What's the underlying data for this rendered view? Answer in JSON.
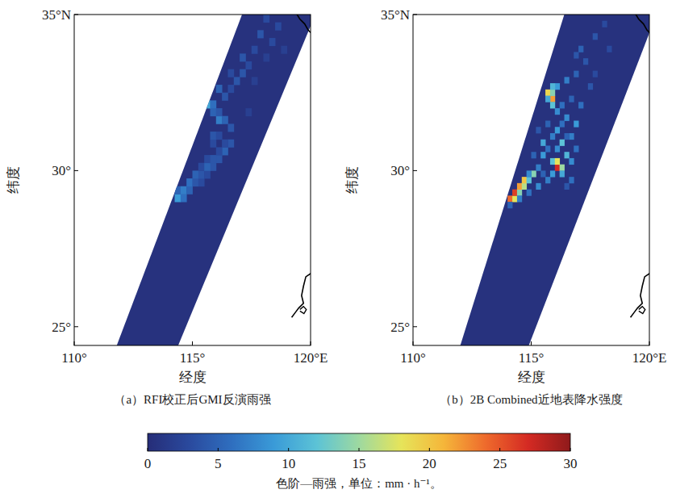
{
  "chart_data": [
    {
      "type": "heatmap",
      "title": "（a）RFI校正后GMI反演雨强",
      "xlabel": "经度",
      "ylabel": "纬度",
      "xlim": [
        110,
        120
      ],
      "ylim": [
        24.4,
        35
      ],
      "xticks": [
        {
          "value": 110,
          "label": "110°"
        },
        {
          "value": 115,
          "label": "115°"
        },
        {
          "value": 120,
          "label": "120°E"
        }
      ],
      "yticks": [
        {
          "value": 25,
          "label": "25°"
        },
        {
          "value": 30,
          "label": "30°"
        },
        {
          "value": 35,
          "label": "35°N"
        }
      ],
      "swath": [
        [
          111.8,
          24.4
        ],
        [
          114.4,
          24.4
        ],
        [
          120.2,
          35
        ],
        [
          117.1,
          35
        ]
      ],
      "background": 0.5,
      "cell_size": 0.25,
      "cells": [
        [
          114.375,
          29.125,
          9
        ],
        [
          114.625,
          29.125,
          6
        ],
        [
          114.375,
          29.375,
          5
        ],
        [
          114.625,
          29.375,
          7
        ],
        [
          114.875,
          29.375,
          5
        ],
        [
          114.875,
          29.625,
          6
        ],
        [
          115.125,
          29.625,
          4
        ],
        [
          115.375,
          29.625,
          3
        ],
        [
          115.125,
          29.875,
          5
        ],
        [
          115.375,
          29.875,
          4
        ],
        [
          115.625,
          29.875,
          3
        ],
        [
          115.875,
          30.125,
          4
        ],
        [
          115.375,
          30.125,
          3
        ],
        [
          115.625,
          30.125,
          5
        ],
        [
          116.125,
          30.375,
          4
        ],
        [
          115.625,
          30.375,
          3
        ],
        [
          115.875,
          30.375,
          4
        ],
        [
          116.375,
          30.625,
          5
        ],
        [
          116.125,
          30.625,
          3
        ],
        [
          116.625,
          30.875,
          4
        ],
        [
          115.875,
          30.875,
          3
        ],
        [
          116.375,
          30.875,
          3
        ],
        [
          115.875,
          31.125,
          4
        ],
        [
          116.125,
          31.125,
          3
        ],
        [
          116.625,
          31.375,
          4
        ],
        [
          116.125,
          31.625,
          7
        ],
        [
          116.375,
          31.625,
          5
        ],
        [
          115.875,
          31.875,
          5
        ],
        [
          116.125,
          31.875,
          4
        ],
        [
          115.625,
          32.125,
          10
        ],
        [
          115.875,
          32.125,
          6
        ],
        [
          116.375,
          32.375,
          4
        ],
        [
          116.125,
          32.625,
          5
        ],
        [
          116.625,
          32.625,
          3
        ],
        [
          116.875,
          32.875,
          4
        ],
        [
          117.125,
          33.125,
          4
        ],
        [
          116.625,
          33.125,
          3
        ],
        [
          117.375,
          33.375,
          3
        ],
        [
          117.125,
          33.625,
          4
        ],
        [
          117.625,
          33.875,
          3
        ],
        [
          118.125,
          33.625,
          2
        ],
        [
          118.375,
          34.125,
          3
        ],
        [
          117.875,
          34.375,
          4
        ],
        [
          118.625,
          34.625,
          3
        ],
        [
          118.875,
          33.875,
          2
        ],
        [
          117.625,
          32.875,
          2
        ],
        [
          117.375,
          31.875,
          2
        ],
        [
          118.125,
          34.875,
          3
        ]
      ]
    },
    {
      "type": "heatmap",
      "title": "（b）2B Combined近地表降水强度",
      "xlabel": "经度",
      "ylabel": "纬度",
      "xlim": [
        110,
        120
      ],
      "ylim": [
        24.4,
        35
      ],
      "xticks": [
        {
          "value": 110,
          "label": "110°"
        },
        {
          "value": 115,
          "label": "115°"
        },
        {
          "value": 120,
          "label": "120°E"
        }
      ],
      "yticks": [
        {
          "value": 25,
          "label": "25°"
        },
        {
          "value": 30,
          "label": "30°"
        },
        {
          "value": 35,
          "label": "35°N"
        }
      ],
      "swath": [
        [
          112,
          24.4
        ],
        [
          114.9,
          24.4
        ],
        [
          120.3,
          35
        ],
        [
          116.4,
          35
        ]
      ],
      "background": 0.5,
      "cell_size": 0.2,
      "cells": [
        [
          114.1,
          29.1,
          24
        ],
        [
          114.3,
          29.1,
          18
        ],
        [
          114.3,
          29.3,
          26
        ],
        [
          114.5,
          29.3,
          14
        ],
        [
          114.5,
          29.5,
          22
        ],
        [
          114.7,
          29.5,
          16
        ],
        [
          114.7,
          29.7,
          20
        ],
        [
          114.9,
          29.7,
          12
        ],
        [
          115.1,
          29.9,
          14
        ],
        [
          114.9,
          29.9,
          8
        ],
        [
          116.1,
          30.1,
          27
        ],
        [
          116.3,
          30.1,
          15
        ],
        [
          115.9,
          30.3,
          12
        ],
        [
          116.1,
          30.3,
          18
        ],
        [
          116.3,
          29.9,
          10
        ],
        [
          115.9,
          29.9,
          9
        ],
        [
          116.5,
          30.5,
          11
        ],
        [
          116.7,
          30.3,
          8
        ],
        [
          115.9,
          32.3,
          22
        ],
        [
          115.7,
          32.5,
          19
        ],
        [
          115.9,
          32.5,
          14
        ],
        [
          115.7,
          32.3,
          10
        ],
        [
          115.9,
          32.1,
          12
        ],
        [
          116.1,
          32.7,
          9
        ],
        [
          115.9,
          32.7,
          11
        ],
        [
          116.1,
          31.9,
          8
        ],
        [
          115.3,
          30.1,
          7
        ],
        [
          115.5,
          30.5,
          9
        ],
        [
          115.7,
          30.7,
          6
        ],
        [
          115.5,
          30.9,
          10
        ],
        [
          115.9,
          31.1,
          7
        ],
        [
          116.1,
          31.3,
          9
        ],
        [
          116.3,
          31.5,
          6
        ],
        [
          116.5,
          31.7,
          8
        ],
        [
          115.7,
          31.5,
          5
        ],
        [
          116.7,
          31.1,
          7
        ],
        [
          116.9,
          30.7,
          6
        ],
        [
          116.5,
          31.1,
          5
        ],
        [
          116.9,
          31.5,
          9
        ],
        [
          117.1,
          32.1,
          6
        ],
        [
          116.7,
          32.3,
          5
        ],
        [
          116.5,
          32.9,
          7
        ],
        [
          116.9,
          33.1,
          5
        ],
        [
          117.3,
          33.5,
          4
        ],
        [
          117.1,
          33.9,
          5
        ],
        [
          117.7,
          34.3,
          4
        ],
        [
          118.1,
          34.7,
          3
        ],
        [
          116.9,
          33.7,
          4
        ],
        [
          117.5,
          32.7,
          4
        ],
        [
          114.9,
          29.3,
          6
        ],
        [
          115.3,
          29.5,
          8
        ],
        [
          115.7,
          29.7,
          7
        ],
        [
          115.5,
          29.9,
          5
        ],
        [
          116.7,
          29.7,
          6
        ],
        [
          115.1,
          30.5,
          5
        ],
        [
          116.3,
          30.9,
          12
        ],
        [
          116.1,
          30.7,
          8
        ],
        [
          115.3,
          31.3,
          4
        ],
        [
          116.3,
          32.1,
          6
        ],
        [
          117.7,
          33.1,
          3
        ],
        [
          118.3,
          33.9,
          3
        ],
        [
          116.5,
          29.5,
          4
        ],
        [
          114.5,
          29.1,
          7
        ],
        [
          114.1,
          28.9,
          5
        ]
      ]
    }
  ],
  "colorbar": {
    "range": [
      0,
      30
    ],
    "ticks": [
      0,
      5,
      10,
      15,
      20,
      25,
      30
    ],
    "label": "色阶—雨强，单位：mm · h⁻¹。",
    "colors": [
      "#262d78",
      "#2a4a9e",
      "#2f6fbf",
      "#3a9bd8",
      "#5cc3d6",
      "#9ed9a0",
      "#e6e45a",
      "#f5b63a",
      "#ee6a2c",
      "#d42a23",
      "#8f1a1b"
    ]
  }
}
